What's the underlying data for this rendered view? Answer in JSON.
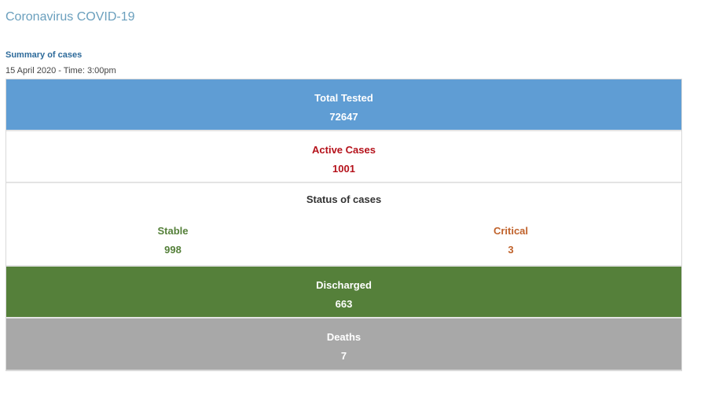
{
  "page": {
    "title": "Coronavirus COVID-19"
  },
  "summary": {
    "title": "Summary of cases",
    "date": "15 April 2020 - Time: 3:00pm"
  },
  "stats": {
    "total_tested": {
      "label": "Total Tested",
      "value": "72647",
      "color": "#5f9dd4"
    },
    "active_cases": {
      "label": "Active Cases",
      "value": "1001",
      "color": "#b5121b"
    },
    "status": {
      "heading": "Status of cases",
      "stable": {
        "label": "Stable",
        "value": "998",
        "color": "#55803a"
      },
      "critical": {
        "label": "Critical",
        "value": "3",
        "color": "#c0622b"
      }
    },
    "discharged": {
      "label": "Discharged",
      "value": "663",
      "color": "#55803a"
    },
    "deaths": {
      "label": "Deaths",
      "value": "7",
      "color": "#a8a8a8"
    }
  }
}
